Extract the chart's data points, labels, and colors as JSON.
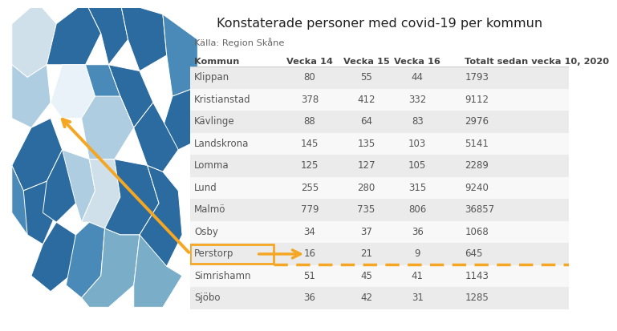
{
  "title": "Konstaterade personer med covid-19 per kommun",
  "subtitle": "Källa: Region Skåne",
  "columns": [
    "Kommun",
    "Vecka 14",
    "Vecka 15",
    "Vecka 16",
    "Totalt sedan vecka 10, 2020"
  ],
  "rows": [
    [
      "Klippan",
      "80",
      "55",
      "44",
      "1793"
    ],
    [
      "Kristianstad",
      "378",
      "412",
      "332",
      "9112"
    ],
    [
      "Kävlinge",
      "88",
      "64",
      "83",
      "2976"
    ],
    [
      "Landskrona",
      "145",
      "135",
      "103",
      "5141"
    ],
    [
      "Lomma",
      "125",
      "127",
      "105",
      "2289"
    ],
    [
      "Lund",
      "255",
      "280",
      "315",
      "9240"
    ],
    [
      "Malmö",
      "779",
      "735",
      "806",
      "36857"
    ],
    [
      "Osby",
      "34",
      "37",
      "36",
      "1068"
    ],
    [
      "Perstorp",
      "16",
      "21",
      "9",
      "645"
    ],
    [
      "Simrishamn",
      "51",
      "45",
      "41",
      "1143"
    ],
    [
      "Sjöbo",
      "36",
      "42",
      "31",
      "1285"
    ]
  ],
  "highlighted_row": 8,
  "highlight_color": "#f5a623",
  "bg_color": "#ffffff",
  "alt_row_color": "#ebebeb",
  "white_row_color": "#f8f8f8",
  "header_text_color": "#444444",
  "cell_text_color": "#555555",
  "header_line_color": "#cccccc",
  "arrow_color": "#f5a623",
  "map_blues": {
    "dark": "#2b6b9f",
    "mid": "#4a8ab8",
    "light": "#7aaec8",
    "vlight": "#aecde0",
    "pale": "#cfe0ea",
    "white": "#e8f2f8"
  },
  "map_edge": "#6a9ab8",
  "border_color": "#888888"
}
